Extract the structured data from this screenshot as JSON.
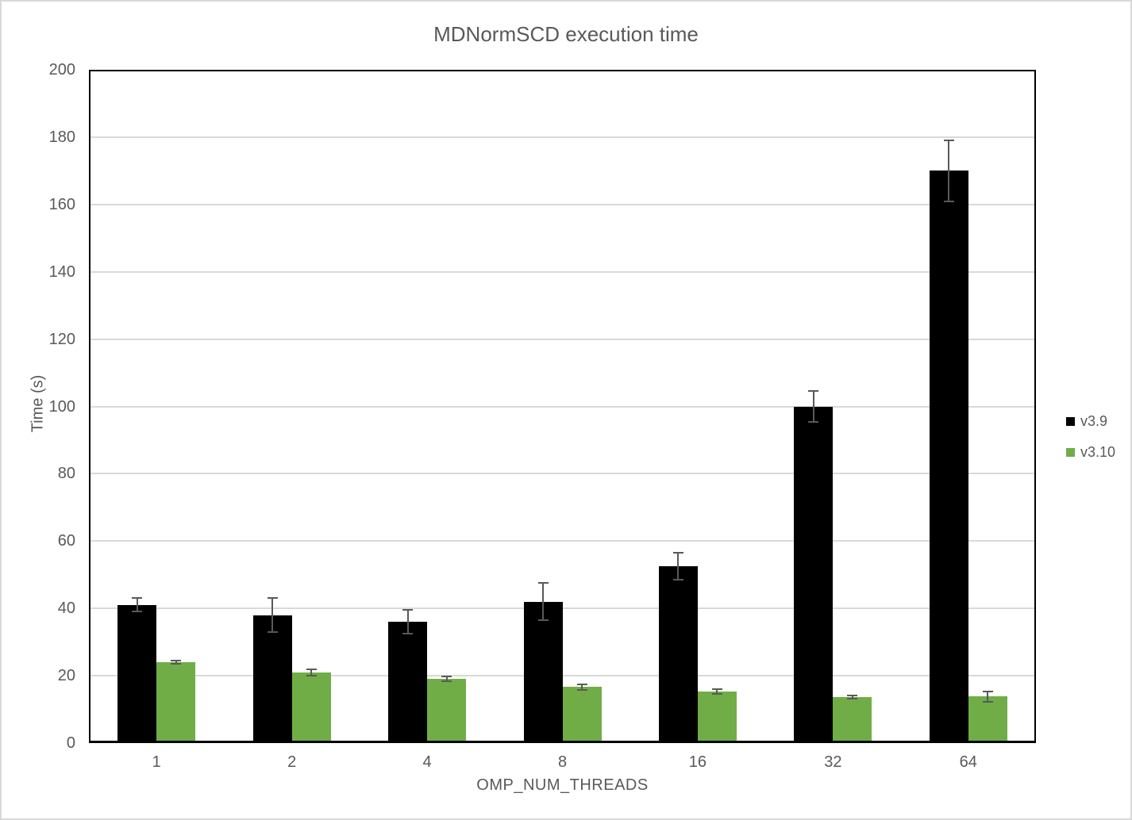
{
  "chart_data": {
    "type": "bar",
    "title": "MDNormSCD execution time",
    "xlabel": "OMP_NUM_THREADS",
    "ylabel": "Time (s)",
    "categories": [
      "1",
      "2",
      "4",
      "8",
      "16",
      "32",
      "64"
    ],
    "series": [
      {
        "name": "v3.9",
        "color": "#000000",
        "values": [
          41,
          38,
          36,
          42,
          52.5,
          100,
          170
        ],
        "error_bars": [
          2,
          5,
          3.5,
          5.5,
          4,
          4.5,
          9
        ]
      },
      {
        "name": "v3.10",
        "color": "#70AD47",
        "values": [
          24,
          21,
          19,
          16.7,
          15.4,
          13.7,
          13.8
        ],
        "error_bars": [
          0.5,
          1,
          0.7,
          0.8,
          0.7,
          0.5,
          1.5
        ]
      }
    ],
    "ylim": [
      0,
      200
    ],
    "yticks": [
      0,
      20,
      40,
      60,
      80,
      100,
      120,
      140,
      160,
      180,
      200
    ],
    "grid": true,
    "legend_position": "right",
    "colors": {
      "text": "#595959",
      "gridline": "#D9D9D9",
      "axis": "#000000",
      "error_bar": "#595959",
      "background": "#FFFFFF"
    }
  }
}
